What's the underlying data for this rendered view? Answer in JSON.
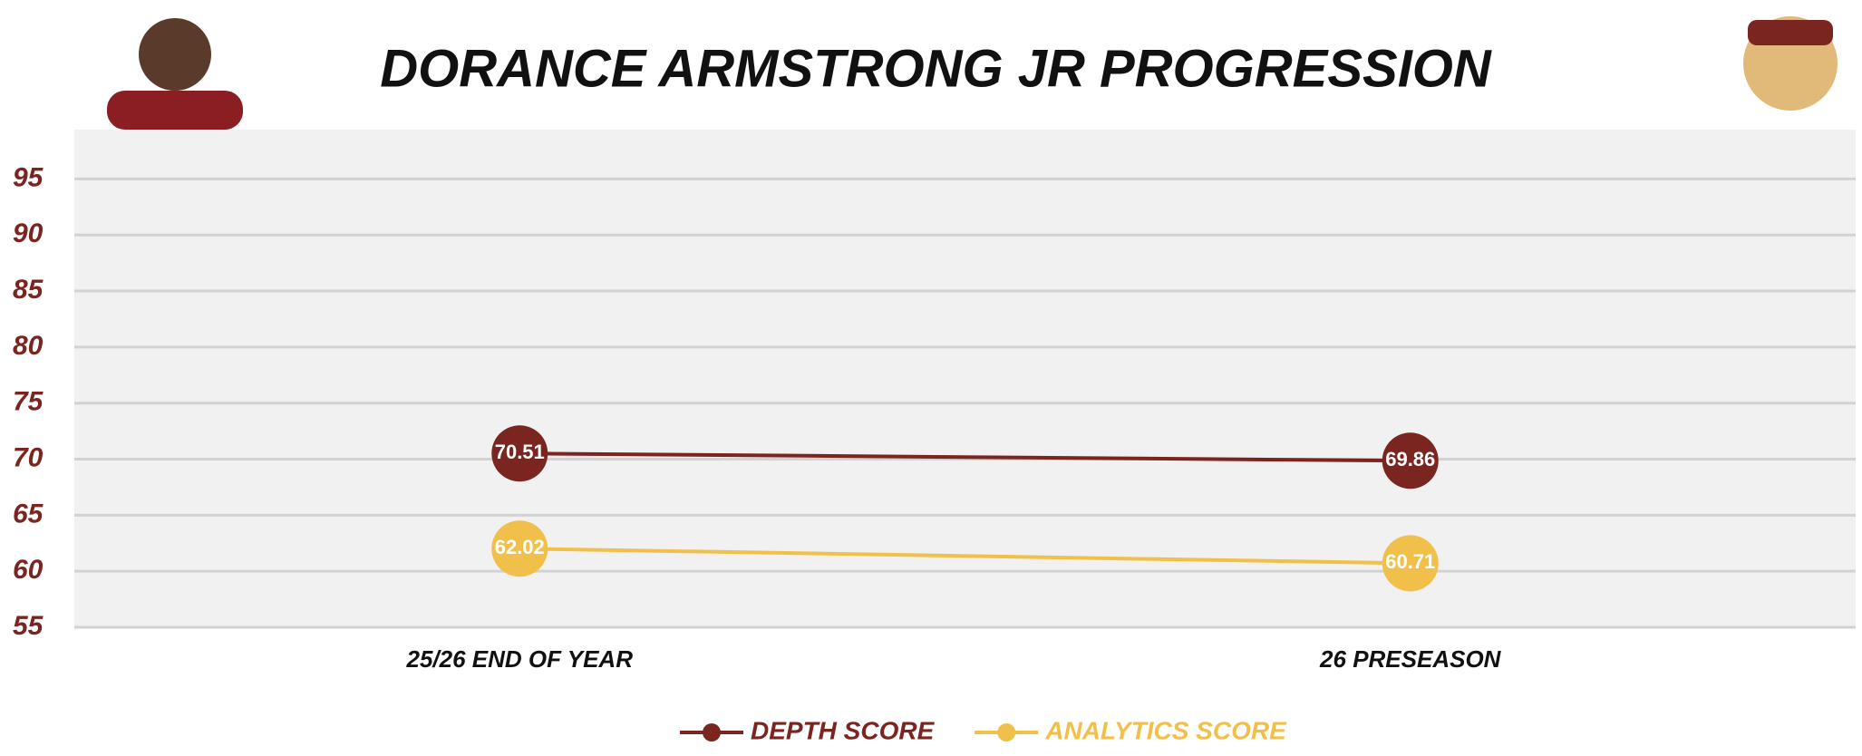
{
  "chart_data": {
    "type": "line",
    "title": "DORANCE ARMSTRONG JR PROGRESSION",
    "categories": [
      "25/26 END OF YEAR",
      "26 PRESEASON"
    ],
    "series": [
      {
        "name": "DEPTH SCORE",
        "color": "#7b2521",
        "values": [
          70.51,
          69.86
        ]
      },
      {
        "name": "ANALYTICS SCORE",
        "color": "#f0c04a",
        "values": [
          62.02,
          60.71
        ]
      }
    ],
    "ylim": [
      55,
      99.4
    ],
    "yticks": [
      55,
      60,
      65,
      70,
      75,
      80,
      85,
      90,
      95
    ],
    "grid": true,
    "legend": "bottom"
  }
}
